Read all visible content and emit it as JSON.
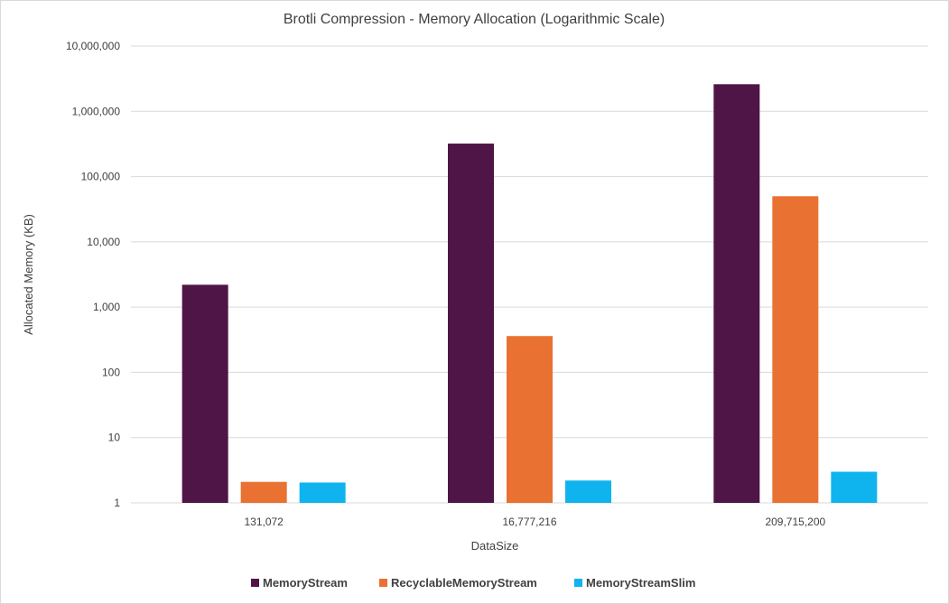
{
  "chart_data": {
    "type": "bar",
    "title": "Brotli Compression - Memory Allocation (Logarithmic Scale)",
    "xlabel": "DataSize",
    "ylabel": "Allocated Memory (KB)",
    "y_scale": "log10",
    "ylim": [
      1,
      10000000
    ],
    "y_ticks": [
      1,
      10,
      100,
      1000,
      10000,
      100000,
      1000000,
      10000000
    ],
    "y_tick_labels": [
      "1",
      "10",
      "100",
      "1,000",
      "10,000",
      "100,000",
      "1,000,000",
      "10,000,000"
    ],
    "categories": [
      "131,072",
      "16,777,216",
      "209,715,200"
    ],
    "series": [
      {
        "name": "MemoryStream",
        "color": "#4e1546",
        "values": [
          2200,
          320000,
          2600000
        ]
      },
      {
        "name": "RecyclableMemoryStream",
        "color": "#e97132",
        "values": [
          2.1,
          360,
          50000
        ]
      },
      {
        "name": "MemoryStreamSlim",
        "color": "#0fb4ee",
        "values": [
          2.05,
          2.2,
          3.0
        ]
      }
    ],
    "grid": true,
    "legend_position": "bottom"
  }
}
